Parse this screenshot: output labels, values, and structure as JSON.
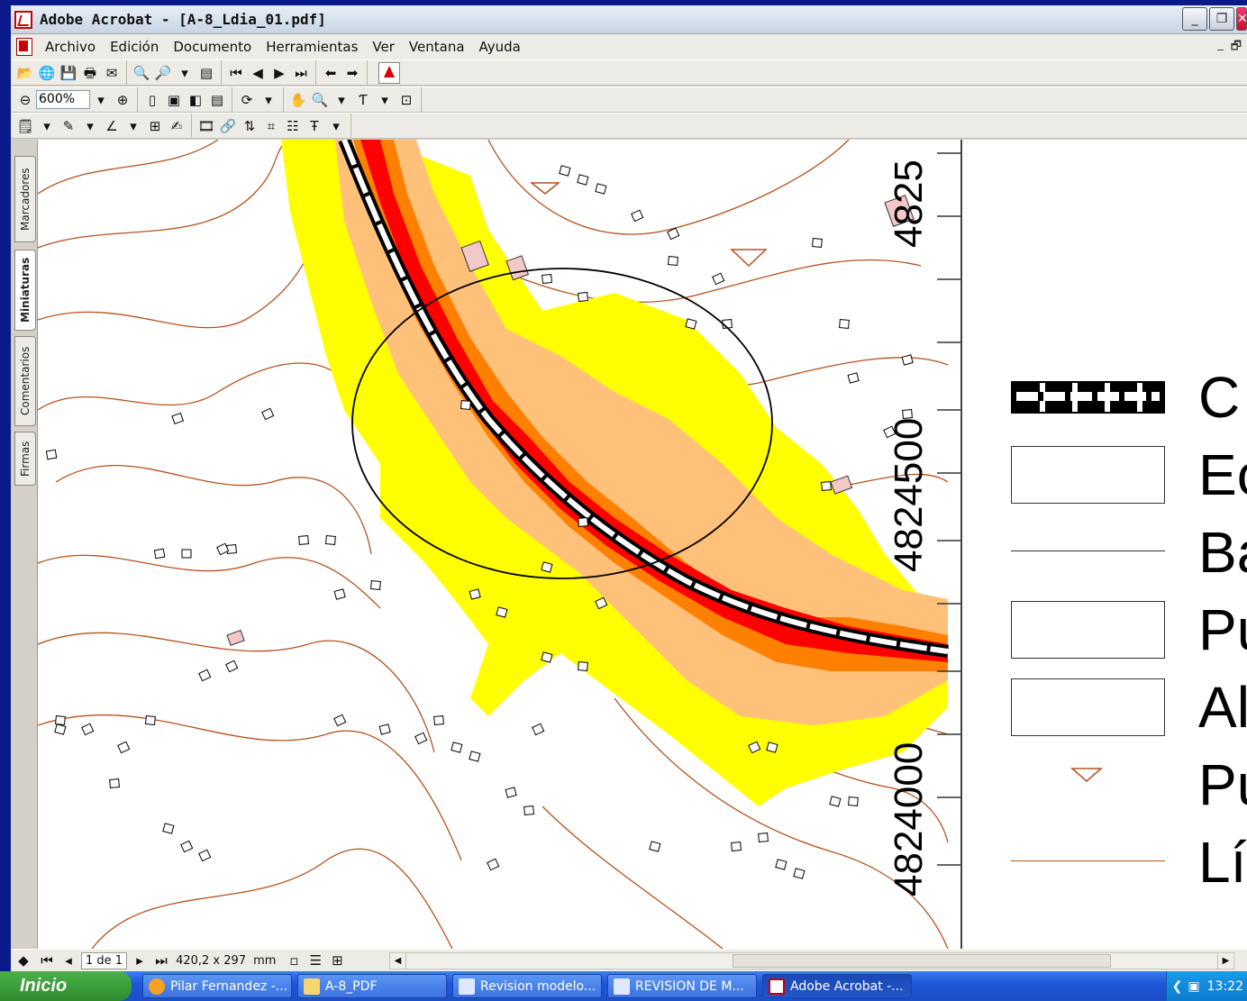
{
  "window": {
    "title": "Adobe Acrobat - [A-8_Ldia_01.pdf]"
  },
  "menu": [
    "Archivo",
    "Edición",
    "Documento",
    "Herramientas",
    "Ver",
    "Ventana",
    "Ayuda"
  ],
  "toolbar": {
    "zoom_value": "600%"
  },
  "side_tabs": [
    "Marcadores",
    "Miniaturas",
    "Comentarios",
    "Firmas"
  ],
  "document": {
    "coordinates": [
      "4824000",
      "4824500",
      "4825"
    ],
    "legend_words": [
      "C",
      "Ec",
      "Ba",
      "Pu",
      "Al",
      "Pu",
      "Lí"
    ],
    "colors": {
      "road": "#000000",
      "zone_red": "#ff0000",
      "zone_magenta": "#ff00b4",
      "zone_orange": "#ff8000",
      "zone_light_orange": "#ffc07a",
      "zone_yellow": "#ffff00",
      "contour": "#b5521e",
      "building": "#f2c8c8"
    }
  },
  "status": {
    "page_indicator": "1 de 1",
    "page_size": "420,2 x 297",
    "page_unit": "mm"
  },
  "taskbar": {
    "start_label": "Inicio",
    "tasks": [
      "Pilar Fernandez -...",
      "A-8_PDF",
      "Revision modelo...",
      "REVISION DE M...",
      "Adobe Acrobat -..."
    ],
    "clock": "13:22"
  }
}
